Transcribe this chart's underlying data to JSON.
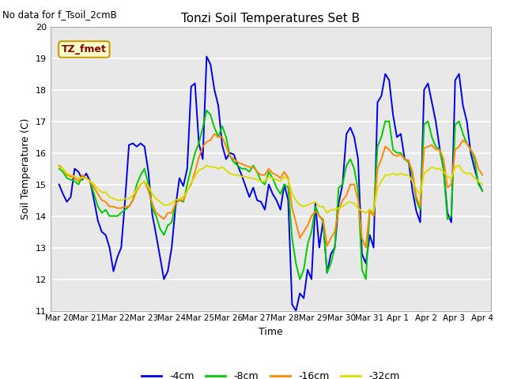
{
  "title": "Tonzi Soil Temperatures Set B",
  "xlabel": "Time",
  "ylabel": "Soil Temperature (C)",
  "no_data_text": "No data for f_Tsoil_2cmB",
  "annotation_text": "TZ_fmet",
  "ylim": [
    11.0,
    20.0
  ],
  "yticks": [
    11.0,
    12.0,
    13.0,
    14.0,
    15.0,
    16.0,
    17.0,
    18.0,
    19.0,
    20.0
  ],
  "bg_color": "#e8e8e8",
  "colors": {
    "-4cm": "#0000ee",
    "-8cm": "#00cc00",
    "-16cm": "#ff8800",
    "-32cm": "#dddd00"
  },
  "x_labels": [
    "Mar 20",
    "Mar 21",
    "Mar 22",
    "Mar 23",
    "Mar 24",
    "Mar 25",
    "Mar 26",
    "Mar 27",
    "Mar 28",
    "Mar 29",
    "Mar 30",
    "Mar 31",
    "Apr 1",
    "Apr 2",
    "Apr 3",
    "Apr 4"
  ],
  "series": {
    "-4cm": [
      15.0,
      14.7,
      14.45,
      14.6,
      15.5,
      15.4,
      15.15,
      15.35,
      15.1,
      14.5,
      13.85,
      13.5,
      13.4,
      13.0,
      12.25,
      12.7,
      13.0,
      14.5,
      16.25,
      16.3,
      16.2,
      16.3,
      16.2,
      15.4,
      14.05,
      13.4,
      12.7,
      12.0,
      12.25,
      13.0,
      14.3,
      15.2,
      14.95,
      15.5,
      18.1,
      18.2,
      16.3,
      15.8,
      19.05,
      18.8,
      18.0,
      17.5,
      16.25,
      15.8,
      16.0,
      15.95,
      15.6,
      15.3,
      14.95,
      14.6,
      14.9,
      14.5,
      14.45,
      14.2,
      15.0,
      14.7,
      14.5,
      14.2,
      15.0,
      14.5,
      11.2,
      11.0,
      11.55,
      11.4,
      12.3,
      12.0,
      14.4,
      13.0,
      13.85,
      12.2,
      12.8,
      13.0,
      14.4,
      15.0,
      16.6,
      16.8,
      16.5,
      15.8,
      12.8,
      12.5,
      13.4,
      13.0,
      17.6,
      17.8,
      18.5,
      18.3,
      17.2,
      16.5,
      16.6,
      15.8,
      15.75,
      14.8,
      14.15,
      13.8,
      18.0,
      18.2,
      17.6,
      17.0,
      16.15,
      15.5,
      14.1,
      13.8,
      18.3,
      18.5,
      17.5,
      17.0,
      16.0,
      15.5,
      15.05,
      14.8
    ],
    "-8cm": [
      15.5,
      15.4,
      15.2,
      15.15,
      15.1,
      15.0,
      15.25,
      15.2,
      15.1,
      14.7,
      14.3,
      14.1,
      14.2,
      14.0,
      14.0,
      14.0,
      14.1,
      14.2,
      14.3,
      14.5,
      15.0,
      15.3,
      15.5,
      15.0,
      14.25,
      14.0,
      13.6,
      13.4,
      13.7,
      13.8,
      14.4,
      14.5,
      14.45,
      15.0,
      15.5,
      16.0,
      16.3,
      16.8,
      17.35,
      17.2,
      16.8,
      16.5,
      16.85,
      16.5,
      15.9,
      15.7,
      15.6,
      15.5,
      15.5,
      15.4,
      15.6,
      15.4,
      15.1,
      15.0,
      15.4,
      15.2,
      14.9,
      14.7,
      15.0,
      14.9,
      13.3,
      12.5,
      12.0,
      12.3,
      13.1,
      13.5,
      14.3,
      14.0,
      13.85,
      12.2,
      12.5,
      13.0,
      14.9,
      15.0,
      15.6,
      15.8,
      15.5,
      14.8,
      12.3,
      12.0,
      14.2,
      14.0,
      16.2,
      16.5,
      17.0,
      17.0,
      16.1,
      16.0,
      16.0,
      15.8,
      15.7,
      15.3,
      14.5,
      14.2,
      16.9,
      17.0,
      16.5,
      16.2,
      16.1,
      15.5,
      13.9,
      14.0,
      16.9,
      17.0,
      16.6,
      16.3,
      16.1,
      15.8,
      15.0,
      14.8
    ],
    "-16cm": [
      15.6,
      15.5,
      15.3,
      15.25,
      15.2,
      15.1,
      15.3,
      15.2,
      15.1,
      14.9,
      14.7,
      14.5,
      14.45,
      14.3,
      14.3,
      14.25,
      14.25,
      14.3,
      14.3,
      14.5,
      14.8,
      15.0,
      15.1,
      14.8,
      14.4,
      14.1,
      14.0,
      13.9,
      14.1,
      14.1,
      14.4,
      14.5,
      14.5,
      14.8,
      15.0,
      15.4,
      15.85,
      16.2,
      16.35,
      16.4,
      16.6,
      16.5,
      16.5,
      16.2,
      15.9,
      15.8,
      15.7,
      15.65,
      15.6,
      15.55,
      15.55,
      15.4,
      15.3,
      15.3,
      15.5,
      15.35,
      15.3,
      15.2,
      15.4,
      15.2,
      14.25,
      13.8,
      13.3,
      13.5,
      13.7,
      14.0,
      14.15,
      14.0,
      13.9,
      13.05,
      13.3,
      13.5,
      14.2,
      14.5,
      14.65,
      15.0,
      15.0,
      14.5,
      13.3,
      13.0,
      14.2,
      14.0,
      15.5,
      15.8,
      16.2,
      16.1,
      15.95,
      15.9,
      15.95,
      15.8,
      15.75,
      15.4,
      14.6,
      14.3,
      16.15,
      16.2,
      16.25,
      16.1,
      16.1,
      15.8,
      14.9,
      15.0,
      16.1,
      16.2,
      16.4,
      16.3,
      16.1,
      15.9,
      15.5,
      15.3
    ],
    "-32cm": [
      15.55,
      15.5,
      15.35,
      15.3,
      15.25,
      15.2,
      15.2,
      15.2,
      15.1,
      15.0,
      14.85,
      14.75,
      14.75,
      14.6,
      14.55,
      14.5,
      14.5,
      14.55,
      14.55,
      14.65,
      14.85,
      15.0,
      15.1,
      14.95,
      14.7,
      14.55,
      14.45,
      14.35,
      14.35,
      14.4,
      14.5,
      14.55,
      14.6,
      14.8,
      15.05,
      15.25,
      15.45,
      15.5,
      15.6,
      15.55,
      15.55,
      15.5,
      15.55,
      15.45,
      15.35,
      15.3,
      15.3,
      15.25,
      15.25,
      15.2,
      15.2,
      15.15,
      15.1,
      15.1,
      15.25,
      15.2,
      15.15,
      15.1,
      15.25,
      15.15,
      14.7,
      14.5,
      14.35,
      14.3,
      14.35,
      14.4,
      14.45,
      14.3,
      14.3,
      14.1,
      14.2,
      14.2,
      14.25,
      14.3,
      14.4,
      14.45,
      14.4,
      14.25,
      14.15,
      14.1,
      14.2,
      14.15,
      14.9,
      15.1,
      15.3,
      15.3,
      15.35,
      15.3,
      15.35,
      15.3,
      15.3,
      15.1,
      14.85,
      14.7,
      15.35,
      15.45,
      15.55,
      15.5,
      15.5,
      15.4,
      15.25,
      15.2,
      15.55,
      15.6,
      15.4,
      15.35,
      15.35,
      15.2,
      15.1,
      15.0
    ]
  }
}
